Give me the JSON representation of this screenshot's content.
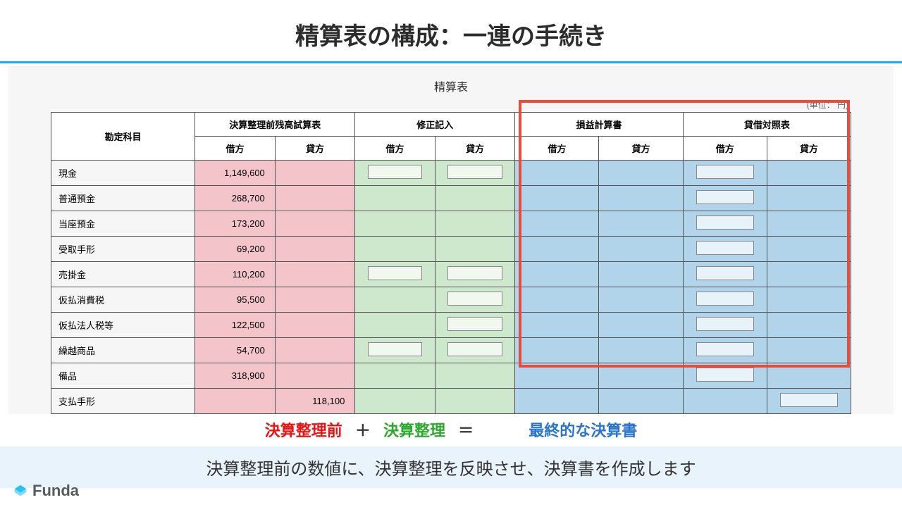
{
  "title": "精算表の構成：一連の手続き",
  "table": {
    "title": "精算表",
    "unit": "(単位： 円)",
    "account_header": "勘定科目",
    "sections": [
      {
        "label": "決算整理前残高試算表",
        "debit": "借方",
        "credit": "貸方",
        "color": "#f3c4ca"
      },
      {
        "label": "修正記入",
        "debit": "借方",
        "credit": "貸方",
        "color": "#cde8cc"
      },
      {
        "label": "損益計算書",
        "debit": "借方",
        "credit": "貸方",
        "color": "#b2d4ea"
      },
      {
        "label": "貸借対照表",
        "debit": "借方",
        "credit": "貸方",
        "color": "#b2d4ea"
      }
    ],
    "rows": [
      {
        "label": "現金",
        "debit": "1,149,600",
        "credit": "",
        "adj_d": true,
        "adj_c": true,
        "bs_d": true,
        "bs_c": false
      },
      {
        "label": "普通預金",
        "debit": "268,700",
        "credit": "",
        "adj_d": false,
        "adj_c": false,
        "bs_d": true,
        "bs_c": false
      },
      {
        "label": "当座預金",
        "debit": "173,200",
        "credit": "",
        "adj_d": false,
        "adj_c": false,
        "bs_d": true,
        "bs_c": false
      },
      {
        "label": "受取手形",
        "debit": "69,200",
        "credit": "",
        "adj_d": false,
        "adj_c": false,
        "bs_d": true,
        "bs_c": false
      },
      {
        "label": "売掛金",
        "debit": "110,200",
        "credit": "",
        "adj_d": true,
        "adj_c": true,
        "bs_d": true,
        "bs_c": false
      },
      {
        "label": "仮払消費税",
        "debit": "95,500",
        "credit": "",
        "adj_d": false,
        "adj_c": true,
        "bs_d": true,
        "bs_c": false
      },
      {
        "label": "仮払法人税等",
        "debit": "122,500",
        "credit": "",
        "adj_d": false,
        "adj_c": true,
        "bs_d": true,
        "bs_c": false
      },
      {
        "label": "繰越商品",
        "debit": "54,700",
        "credit": "",
        "adj_d": true,
        "adj_c": true,
        "bs_d": true,
        "bs_c": false
      },
      {
        "label": "備品",
        "debit": "318,900",
        "credit": "",
        "adj_d": false,
        "adj_c": false,
        "bs_d": true,
        "bs_c": false
      },
      {
        "label": "支払手形",
        "debit": "",
        "credit": "118,100",
        "adj_d": false,
        "adj_c": false,
        "bs_d": false,
        "bs_c": true
      }
    ]
  },
  "equation": {
    "term1": "決算整理前",
    "op1": "＋",
    "term2": "決算整理",
    "op2": "＝",
    "term3": "最終的な決算書"
  },
  "caption": "決算整理前の数値に、決算整理を反映させ、決算書を作成します",
  "logo": "Funda",
  "colors": {
    "title_underline": "#1dabf2",
    "pink": "#f3c4ca",
    "green": "#cde8cc",
    "blue": "#b2d4ea",
    "outline": "#e74c3c",
    "caption_bg": "#e9f3fb",
    "eq_red": "#e11",
    "eq_green": "#2ca82c",
    "eq_blue": "#2a74d0",
    "logo_icon": "#25c3f3"
  }
}
